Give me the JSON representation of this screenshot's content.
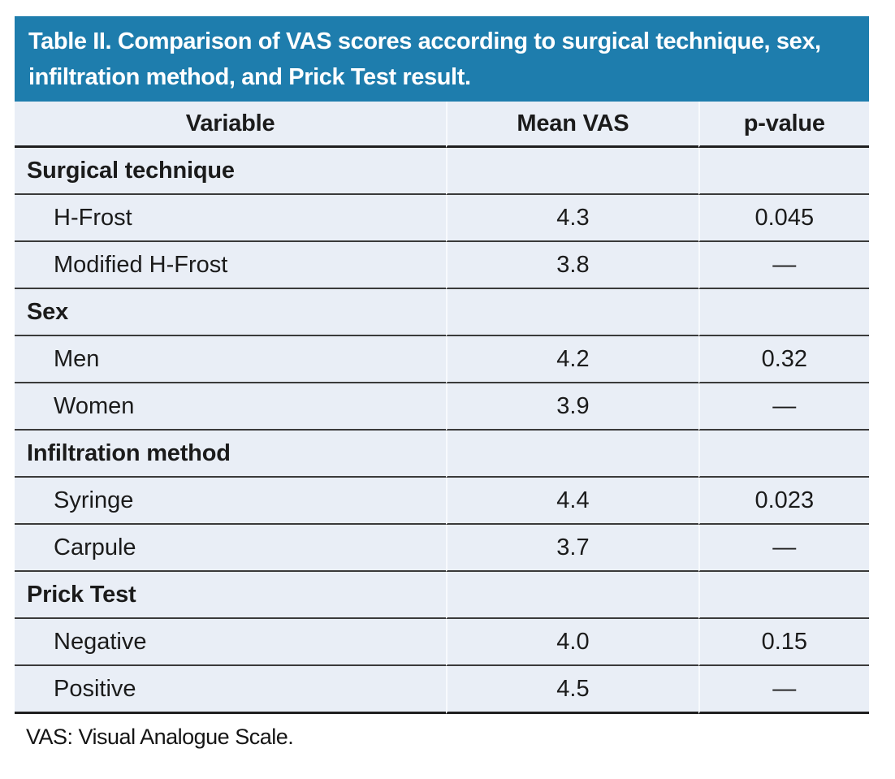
{
  "table": {
    "title": "Table II. Comparison of VAS scores according to surgical technique, sex, infiltration method, and Prick Test result.",
    "columns": [
      "Variable",
      "Mean VAS",
      "p-value"
    ],
    "sections": [
      {
        "label": "Surgical technique",
        "rows": [
          {
            "variable": "H-Frost",
            "mean_vas": "4.3",
            "p_value": "0.045"
          },
          {
            "variable": "Modified H-Frost",
            "mean_vas": "3.8",
            "p_value": "—"
          }
        ]
      },
      {
        "label": "Sex",
        "rows": [
          {
            "variable": "Men",
            "mean_vas": "4.2",
            "p_value": "0.32"
          },
          {
            "variable": "Women",
            "mean_vas": "3.9",
            "p_value": "—"
          }
        ]
      },
      {
        "label": "Infiltration method",
        "rows": [
          {
            "variable": "Syringe",
            "mean_vas": "4.4",
            "p_value": "0.023"
          },
          {
            "variable": "Carpule",
            "mean_vas": "3.7",
            "p_value": "—"
          }
        ]
      },
      {
        "label": "Prick Test",
        "rows": [
          {
            "variable": "Negative",
            "mean_vas": "4.0",
            "p_value": "0.15"
          },
          {
            "variable": "Positive",
            "mean_vas": "4.5",
            "p_value": "—"
          }
        ]
      }
    ],
    "footnote": "VAS: Visual Analogue Scale.",
    "colors": {
      "header_bg": "#1e7dad",
      "row_bg": "#e9eef6",
      "rule": "#3a3a3a",
      "title_text": "#ffffff"
    }
  },
  "chart_data": {
    "type": "table",
    "title": "Table II. Comparison of VAS scores according to surgical technique, sex, infiltration method, and Prick Test result.",
    "columns": [
      "Variable",
      "Mean VAS",
      "p-value"
    ],
    "rows": [
      [
        "Surgical technique",
        "",
        ""
      ],
      [
        "H-Frost",
        "4.3",
        "0.045"
      ],
      [
        "Modified H-Frost",
        "3.8",
        "—"
      ],
      [
        "Sex",
        "",
        ""
      ],
      [
        "Men",
        "4.2",
        "0.32"
      ],
      [
        "Women",
        "3.9",
        "—"
      ],
      [
        "Infiltration method",
        "",
        ""
      ],
      [
        "Syringe",
        "4.4",
        "0.023"
      ],
      [
        "Carpule",
        "3.7",
        "—"
      ],
      [
        "Prick Test",
        "",
        ""
      ],
      [
        "Negative",
        "4.0",
        "0.15"
      ],
      [
        "Positive",
        "4.5",
        "—"
      ]
    ],
    "footnote": "VAS: Visual Analogue Scale."
  }
}
